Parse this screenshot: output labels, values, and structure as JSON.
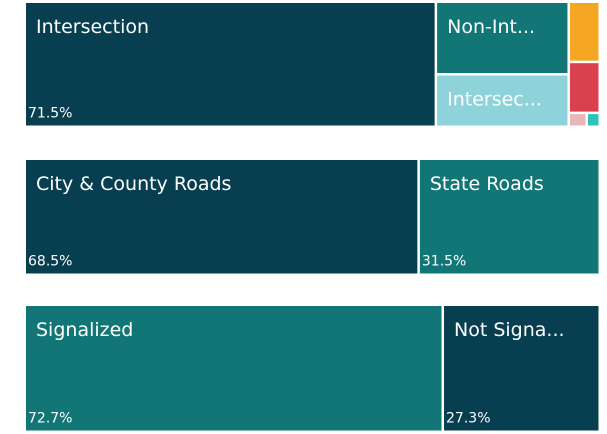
{
  "chart_data": [
    {
      "type": "treemap",
      "categories": [
        "Intersection",
        "Non-Int...",
        "Intersec...",
        null,
        null,
        null,
        null
      ],
      "values": [
        71.5,
        13.4,
        9.7,
        2.6,
        2.2,
        0.35,
        0.25
      ],
      "value_labels": [
        "71.5%",
        null,
        null,
        null,
        null,
        null,
        null
      ],
      "colors": [
        "#073f50",
        "#127676",
        "#8fd3da",
        "#f5a623",
        "#d9414f",
        "#e8b7b9",
        "#2cc3b8"
      ]
    },
    {
      "type": "treemap",
      "categories": [
        "City & County Roads",
        "State Roads"
      ],
      "values": [
        68.5,
        31.5
      ],
      "value_labels": [
        "68.5%",
        "31.5%"
      ],
      "colors": [
        "#073f50",
        "#127676"
      ]
    },
    {
      "type": "treemap",
      "categories": [
        "Signalized",
        "Not Signa..."
      ],
      "values": [
        72.7,
        27.3
      ],
      "value_labels": [
        "72.7%",
        "27.3%"
      ],
      "colors": [
        "#127676",
        "#073f50"
      ]
    }
  ]
}
